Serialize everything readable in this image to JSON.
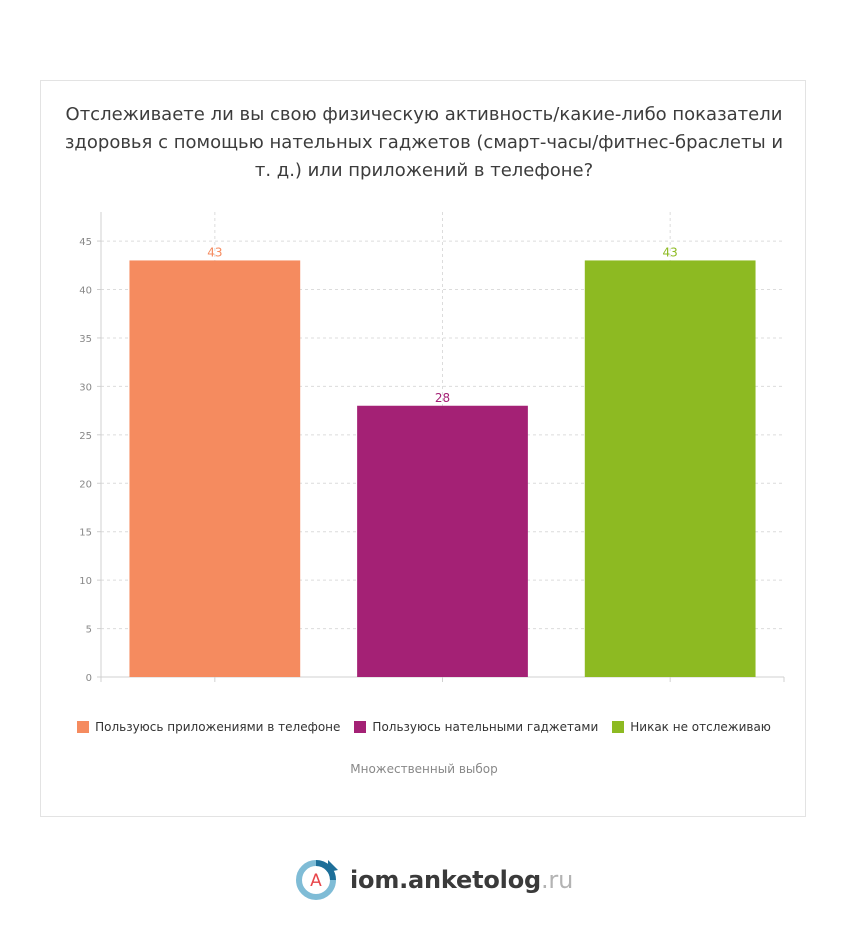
{
  "title": "Отслеживаете ли вы свою физическую активность/какие-либо показатели здоровья с помощью нательных гаджетов (смарт-часы/фитнес-браслеты и т. д.) или приложений в телефоне?",
  "note": "Множественный выбор",
  "brand": {
    "name": "iom.anketolog",
    "tld": ".ru",
    "logo_letter": "А"
  },
  "chart_data": {
    "type": "bar",
    "title": "Отслеживаете ли вы свою физическую активность/какие-либо показатели здоровья с помощью нательных гаджетов (смарт-часы/фитнес-браслеты и т. д.) или приложений в телефоне?",
    "xlabel": "",
    "ylabel": "",
    "ylim": [
      0,
      48
    ],
    "yticks": [
      0,
      5,
      10,
      15,
      20,
      25,
      30,
      35,
      40,
      45
    ],
    "grid": true,
    "legend_position": "bottom",
    "categories": [
      "Пользуюсь приложениями в телефоне",
      "Пользуюсь нательными гаджетами",
      "Никак не отслеживаю"
    ],
    "values": [
      43,
      28,
      43
    ],
    "colors": [
      "#f58b5f",
      "#a42175",
      "#8dba22"
    ]
  }
}
